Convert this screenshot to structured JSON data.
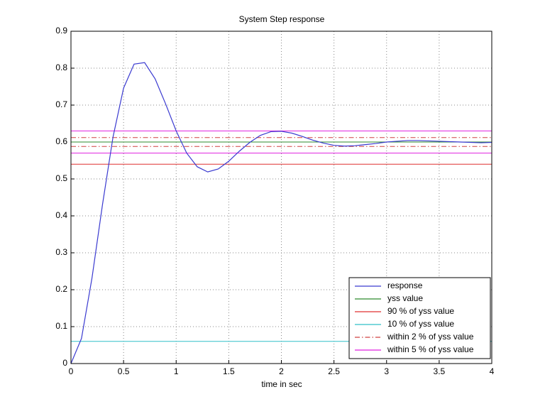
{
  "chart_data": {
    "type": "line",
    "title": "System Step response",
    "xlabel": "time in sec",
    "x": [
      0,
      0.1,
      0.2,
      0.3,
      0.4,
      0.5,
      0.6,
      0.7,
      0.8,
      0.9,
      1,
      1.1,
      1.2,
      1.3,
      1.4,
      1.5,
      1.6,
      1.7,
      1.8,
      1.9,
      2,
      2.1,
      2.2,
      2.3,
      2.4,
      2.5,
      2.6,
      2.7,
      2.8,
      2.9,
      3,
      3.1,
      3.2,
      3.3,
      3.4,
      3.5,
      3.6,
      3.7,
      3.8,
      3.9,
      4
    ],
    "series": [
      {
        "name": "response",
        "color": "#3a3ad0",
        "style": "solid",
        "values": [
          0,
          0.068,
          0.232,
          0.431,
          0.614,
          0.746,
          0.811,
          0.815,
          0.771,
          0.703,
          0.63,
          0.57,
          0.533,
          0.519,
          0.527,
          0.548,
          0.575,
          0.599,
          0.618,
          0.628,
          0.629,
          0.624,
          0.615,
          0.605,
          0.597,
          0.591,
          0.589,
          0.59,
          0.593,
          0.596,
          0.6,
          0.602,
          0.604,
          0.604,
          0.603,
          0.602,
          0.601,
          0.6,
          0.599,
          0.598,
          0.599
        ]
      }
    ],
    "reference_lines": [
      {
        "name": "yss value",
        "color": "#2e8b2e",
        "style": "solid",
        "values": [
          0.6
        ]
      },
      {
        "name": "90 % of yss value",
        "color": "#e03030",
        "style": "solid",
        "values": [
          0.54
        ]
      },
      {
        "name": "10 % of yss value",
        "color": "#30c0c8",
        "style": "solid",
        "values": [
          0.06
        ]
      },
      {
        "name": "within 2 % of yss value",
        "color": "#d04040",
        "style": "dashdot",
        "values": [
          0.612,
          0.588
        ]
      },
      {
        "name": "within 5 % of yss value",
        "color": "#e020e0",
        "style": "solid",
        "values": [
          0.63,
          0.57
        ]
      }
    ],
    "xlim": [
      0,
      4
    ],
    "xticks": [
      0,
      0.5,
      1,
      1.5,
      2,
      2.5,
      3,
      3.5,
      4
    ],
    "ylim": [
      0,
      0.9
    ],
    "yticks": [
      0,
      0.1,
      0.2,
      0.3,
      0.4,
      0.5,
      0.6,
      0.7,
      0.8,
      0.9
    ],
    "grid": true,
    "legend": "lower right"
  }
}
